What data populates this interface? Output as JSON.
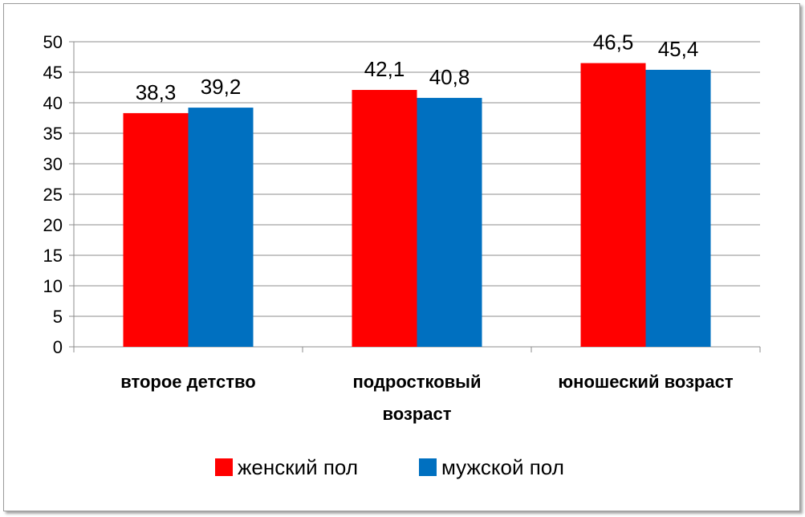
{
  "chart_data": {
    "type": "bar",
    "categories": [
      [
        "второе детство"
      ],
      [
        "подростковый",
        "возраст"
      ],
      [
        "юношеский возраст"
      ]
    ],
    "series": [
      {
        "name": "женский пол",
        "color": "#ff0000",
        "values": [
          38.3,
          42.1,
          46.5
        ],
        "labels": [
          "38,3",
          "42,1",
          "46,5"
        ]
      },
      {
        "name": "мужской пол",
        "color": "#0070c0",
        "values": [
          39.2,
          40.8,
          45.4
        ],
        "labels": [
          "39,2",
          "40,8",
          "45,4"
        ]
      }
    ],
    "ylim": [
      0,
      50
    ],
    "yticks": [
      0,
      5,
      10,
      15,
      20,
      25,
      30,
      35,
      40,
      45,
      50
    ],
    "grid": true,
    "legend_position": "bottom"
  }
}
